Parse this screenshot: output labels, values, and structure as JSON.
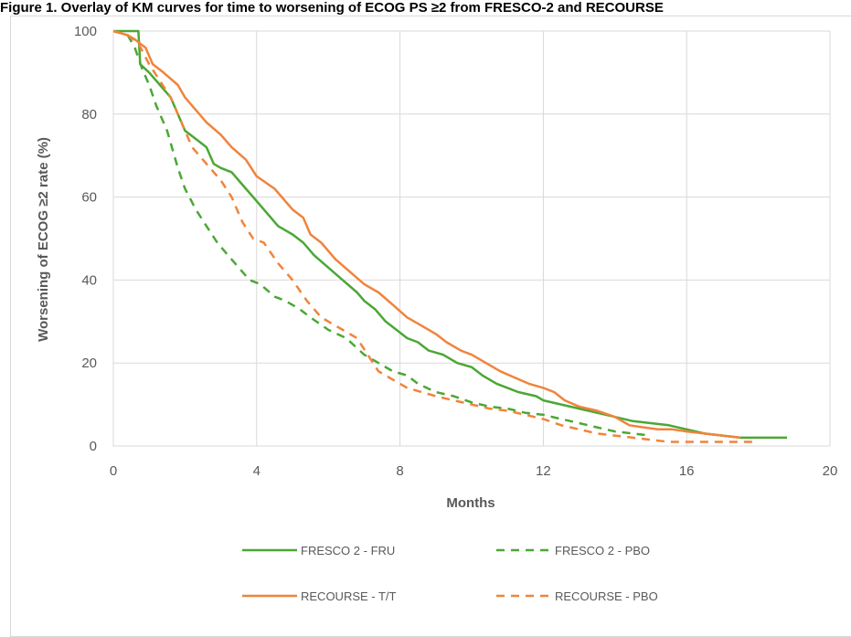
{
  "page": {
    "caption": "Figure 1. Overlay of KM curves for time to worsening of ECOG PS ≥2 from FRESCO-2 and RECOURSE"
  },
  "colors": {
    "green": "#4aa834",
    "orange": "#f0843c",
    "grid": "#d9d9d9",
    "text": "#595959"
  },
  "chart_data": {
    "type": "line",
    "title": "",
    "xlabel": "Months",
    "ylabel": "Worsening of ECOG ≥2 rate (%)",
    "xlim": [
      0,
      20
    ],
    "ylim": [
      0,
      100
    ],
    "xticks": [
      "0",
      "4",
      "8",
      "12",
      "16",
      "20"
    ],
    "yticks": [
      "0",
      "20",
      "40",
      "60",
      "80",
      "100"
    ],
    "grid": "vertical and horizontal",
    "legend_position": "bottom",
    "series": [
      {
        "name": "FRESCO 2 - FRU",
        "color": "#4aa834",
        "dash": "solid",
        "points": [
          [
            0,
            100
          ],
          [
            0.7,
            100
          ],
          [
            0.75,
            92
          ],
          [
            1,
            90
          ],
          [
            1.3,
            87
          ],
          [
            1.6,
            84
          ],
          [
            1.8,
            80
          ],
          [
            1.9,
            78
          ],
          [
            2.0,
            76
          ],
          [
            2.3,
            74
          ],
          [
            2.6,
            72
          ],
          [
            2.8,
            68
          ],
          [
            3.0,
            67
          ],
          [
            3.3,
            66
          ],
          [
            3.6,
            63
          ],
          [
            4.0,
            59
          ],
          [
            4.3,
            56
          ],
          [
            4.6,
            53
          ],
          [
            5.0,
            51
          ],
          [
            5.3,
            49
          ],
          [
            5.6,
            46
          ],
          [
            6.0,
            43
          ],
          [
            6.4,
            40
          ],
          [
            6.8,
            37
          ],
          [
            7.0,
            35
          ],
          [
            7.3,
            33
          ],
          [
            7.6,
            30
          ],
          [
            7.9,
            28
          ],
          [
            8.2,
            26
          ],
          [
            8.5,
            25
          ],
          [
            8.8,
            23
          ],
          [
            9.2,
            22
          ],
          [
            9.6,
            20
          ],
          [
            10.0,
            19
          ],
          [
            10.3,
            17
          ],
          [
            10.7,
            15
          ],
          [
            11.0,
            14
          ],
          [
            11.3,
            13
          ],
          [
            11.8,
            12
          ],
          [
            12.0,
            11
          ],
          [
            12.5,
            10
          ],
          [
            13.0,
            9
          ],
          [
            13.5,
            8
          ],
          [
            14.0,
            7
          ],
          [
            14.5,
            6
          ],
          [
            15.0,
            5.5
          ],
          [
            15.5,
            5
          ],
          [
            16.0,
            4
          ],
          [
            16.5,
            3
          ],
          [
            17.0,
            2.5
          ],
          [
            17.5,
            2
          ],
          [
            18.0,
            2
          ],
          [
            18.8,
            2
          ]
        ]
      },
      {
        "name": "FRESCO 2 - PBO",
        "color": "#4aa834",
        "dash": "dashed",
        "points": [
          [
            0,
            100
          ],
          [
            0.4,
            99
          ],
          [
            0.6,
            96
          ],
          [
            0.8,
            91
          ],
          [
            1.0,
            87
          ],
          [
            1.2,
            82
          ],
          [
            1.5,
            76
          ],
          [
            1.8,
            67
          ],
          [
            2.0,
            62
          ],
          [
            2.3,
            57
          ],
          [
            2.6,
            53
          ],
          [
            2.9,
            49
          ],
          [
            3.2,
            46
          ],
          [
            3.5,
            43
          ],
          [
            3.8,
            40
          ],
          [
            4.1,
            39
          ],
          [
            4.5,
            36
          ],
          [
            4.8,
            35
          ],
          [
            5.2,
            33
          ],
          [
            5.5,
            31
          ],
          [
            6.0,
            28
          ],
          [
            6.5,
            26
          ],
          [
            7.0,
            22
          ],
          [
            7.4,
            20
          ],
          [
            7.8,
            18
          ],
          [
            8.2,
            17
          ],
          [
            8.5,
            15
          ],
          [
            9.0,
            13
          ],
          [
            9.5,
            12
          ],
          [
            10.0,
            10.5
          ],
          [
            10.5,
            9.5
          ],
          [
            11.0,
            9
          ],
          [
            11.5,
            8
          ],
          [
            12.0,
            7.5
          ],
          [
            12.5,
            6.5
          ],
          [
            13.0,
            5.5
          ],
          [
            13.5,
            4.5
          ],
          [
            14.0,
            3.5
          ],
          [
            14.5,
            3
          ],
          [
            15.0,
            2.5
          ]
        ]
      },
      {
        "name": "RECOURSE - T/T",
        "color": "#f0843c",
        "dash": "solid",
        "points": [
          [
            0,
            100
          ],
          [
            0.4,
            99
          ],
          [
            0.6,
            98
          ],
          [
            0.9,
            96
          ],
          [
            1.1,
            92
          ],
          [
            1.4,
            90
          ],
          [
            1.8,
            87
          ],
          [
            2.0,
            84
          ],
          [
            2.3,
            81
          ],
          [
            2.6,
            78
          ],
          [
            3.0,
            75
          ],
          [
            3.3,
            72
          ],
          [
            3.7,
            69
          ],
          [
            4.0,
            65
          ],
          [
            4.5,
            62
          ],
          [
            5.0,
            57
          ],
          [
            5.3,
            55
          ],
          [
            5.5,
            51
          ],
          [
            5.8,
            49
          ],
          [
            6.2,
            45
          ],
          [
            6.6,
            42
          ],
          [
            7.0,
            39
          ],
          [
            7.4,
            37
          ],
          [
            7.8,
            34
          ],
          [
            8.2,
            31
          ],
          [
            8.6,
            29
          ],
          [
            9.0,
            27
          ],
          [
            9.3,
            25
          ],
          [
            9.7,
            23
          ],
          [
            10.0,
            22
          ],
          [
            10.4,
            20
          ],
          [
            10.8,
            18
          ],
          [
            11.2,
            16.5
          ],
          [
            11.6,
            15
          ],
          [
            12.0,
            14
          ],
          [
            12.3,
            13
          ],
          [
            12.6,
            11
          ],
          [
            13.0,
            9.5
          ],
          [
            13.5,
            8.5
          ],
          [
            14.0,
            7
          ],
          [
            14.4,
            5
          ],
          [
            14.8,
            4.5
          ],
          [
            15.2,
            4
          ],
          [
            15.6,
            4
          ],
          [
            16.0,
            3.5
          ],
          [
            16.5,
            3
          ],
          [
            17.0,
            2.5
          ],
          [
            17.5,
            2
          ]
        ]
      },
      {
        "name": "RECOURSE - PBO",
        "color": "#f0843c",
        "dash": "dashed",
        "points": [
          [
            0,
            100
          ],
          [
            0.4,
            99
          ],
          [
            0.7,
            97
          ],
          [
            1.0,
            92
          ],
          [
            1.3,
            88
          ],
          [
            1.6,
            84
          ],
          [
            1.9,
            78
          ],
          [
            2.2,
            72
          ],
          [
            2.6,
            68
          ],
          [
            3.0,
            64
          ],
          [
            3.3,
            60
          ],
          [
            3.6,
            54
          ],
          [
            3.9,
            50
          ],
          [
            4.2,
            49
          ],
          [
            4.6,
            44
          ],
          [
            5.0,
            40
          ],
          [
            5.4,
            35
          ],
          [
            5.8,
            31
          ],
          [
            6.2,
            29
          ],
          [
            6.8,
            26
          ],
          [
            7.1,
            22
          ],
          [
            7.4,
            18
          ],
          [
            7.8,
            16
          ],
          [
            8.2,
            14
          ],
          [
            8.6,
            13
          ],
          [
            9.0,
            12
          ],
          [
            9.5,
            11
          ],
          [
            10.0,
            10
          ],
          [
            10.5,
            9
          ],
          [
            11.0,
            8.5
          ],
          [
            11.5,
            7.5
          ],
          [
            12.0,
            6.5
          ],
          [
            12.5,
            5
          ],
          [
            13.0,
            4
          ],
          [
            13.5,
            3
          ],
          [
            14.0,
            2.5
          ],
          [
            14.5,
            2
          ],
          [
            15.0,
            1.5
          ],
          [
            15.5,
            1
          ],
          [
            16.0,
            1
          ],
          [
            17.0,
            1
          ],
          [
            18.0,
            1
          ]
        ]
      }
    ]
  }
}
